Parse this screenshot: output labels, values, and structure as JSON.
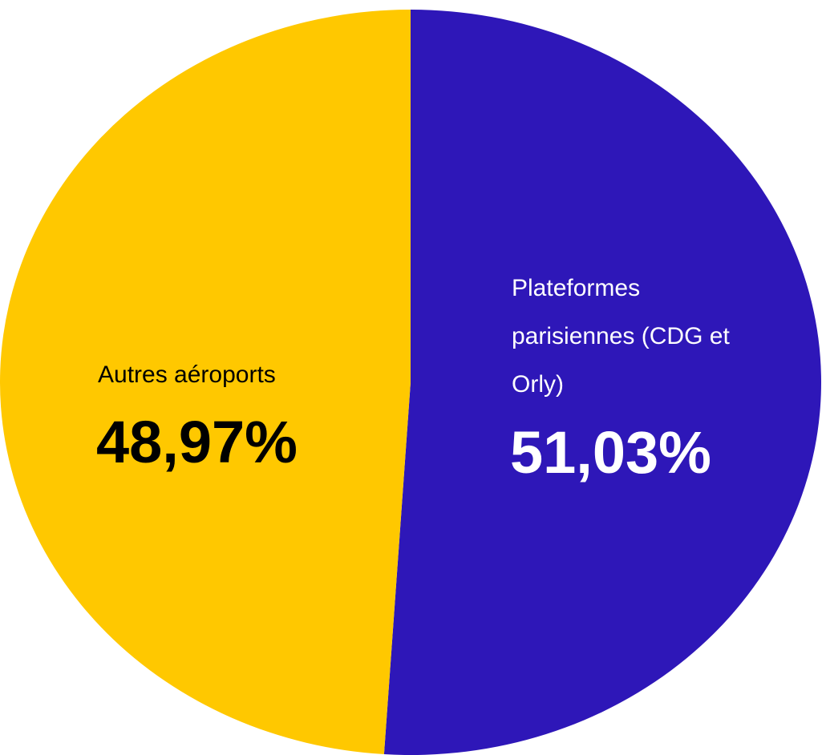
{
  "chart_data": {
    "type": "pie",
    "categories": [
      "Plateformes parisiennes (CDG et Orly)",
      "Autres aéroports"
    ],
    "values": [
      51.03,
      48.97
    ],
    "value_labels": [
      "51,03%",
      "48,97%"
    ],
    "colors": [
      "#2e17b8",
      "#ffc800"
    ],
    "label_colors": [
      "#ffffff",
      "#000000"
    ]
  }
}
